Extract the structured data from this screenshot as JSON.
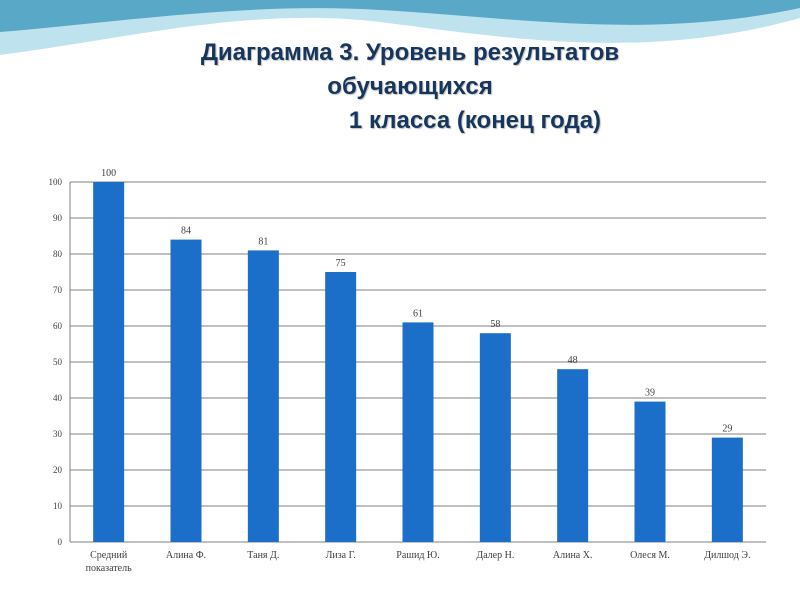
{
  "title": {
    "line1": "Диаграмма 3.  Уровень результатов",
    "line2": "обучающихся",
    "line3": "1 класса (конец года)"
  },
  "colors": {
    "bar": "#1b6fc8",
    "title": "#17365d",
    "wave_dark": "#5aa8c8",
    "wave_light": "#bfe3ee"
  },
  "chart_data": {
    "type": "bar",
    "categories": [
      "Средний показатель",
      "Алина Ф.",
      "Таня Д.",
      "Лиза Г.",
      "Рашид Ю.",
      "Далер Н.",
      "Алина Х.",
      "Олеся М.",
      "Дилшод Э."
    ],
    "values": [
      100,
      84,
      81,
      75,
      61,
      58,
      48,
      39,
      29
    ],
    "ylim": [
      0,
      100
    ],
    "yticks": [
      0,
      10,
      20,
      30,
      40,
      50,
      60,
      70,
      80,
      90,
      100
    ],
    "grid": true,
    "legend": "none"
  }
}
